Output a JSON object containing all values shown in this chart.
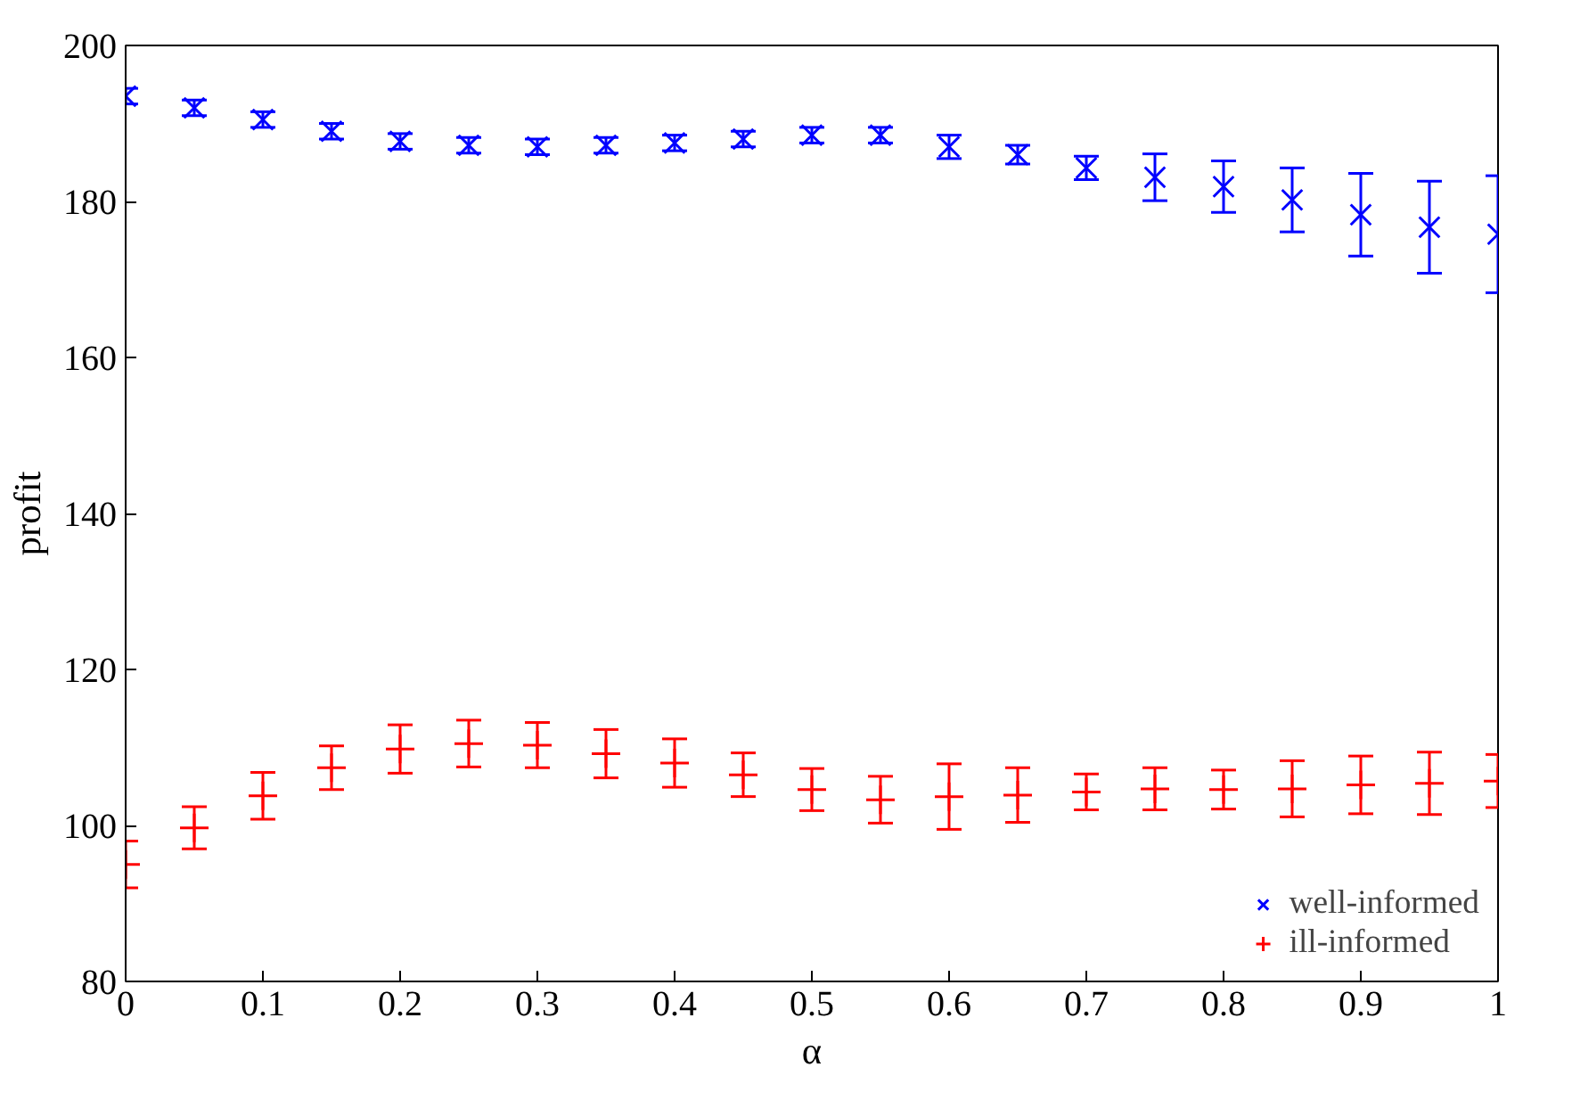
{
  "chart_data": {
    "type": "scatter",
    "xlabel": "α",
    "ylabel": "profit",
    "x": [
      0,
      0.05,
      0.1,
      0.15,
      0.2,
      0.25,
      0.3,
      0.35,
      0.4,
      0.45,
      0.5,
      0.55,
      0.6,
      0.65,
      0.7,
      0.75,
      0.8,
      0.85,
      0.9,
      0.95,
      1
    ],
    "series": [
      {
        "name": "well-informed",
        "color": "#0000ff",
        "marker": "x",
        "values": [
          193.5,
          192,
          190.5,
          189,
          187.7,
          187.2,
          187,
          187.2,
          187.5,
          188,
          188.5,
          188.5,
          187,
          186,
          184.3,
          183.1,
          181.9,
          180.2,
          178.3,
          176.7,
          175.8
        ],
        "errors": [
          1,
          1,
          1,
          1,
          1,
          1,
          1,
          1,
          1,
          1,
          1,
          1,
          1.5,
          1.2,
          1.5,
          3,
          3.3,
          4.1,
          5.3,
          5.9,
          7.5
        ]
      },
      {
        "name": "ill-informed",
        "color": "#ff0000",
        "marker": "cross",
        "values": [
          95.0,
          99.7,
          103.8,
          107.4,
          109.8,
          110.5,
          110.3,
          109.2,
          108,
          106.5,
          104.6,
          103.3,
          103.7,
          103.9,
          104.3,
          104.7,
          104.6,
          104.7,
          105.2,
          105.4,
          105.7
        ],
        "errors": [
          3,
          2.7,
          3,
          2.8,
          3.1,
          3,
          2.9,
          3.1,
          3.1,
          2.8,
          2.7,
          3,
          4.2,
          3.5,
          2.3,
          2.7,
          2.5,
          3.6,
          3.7,
          4,
          3.4
        ]
      }
    ],
    "xlim": [
      0,
      1
    ],
    "ylim": [
      80,
      200
    ],
    "xticks": [
      0,
      0.1,
      0.2,
      0.3,
      0.4,
      0.5,
      0.6,
      0.7,
      0.8,
      0.9,
      1
    ],
    "yticks": [
      80,
      100,
      120,
      140,
      160,
      180,
      200
    ],
    "grid": false,
    "legend": "bottom right"
  }
}
